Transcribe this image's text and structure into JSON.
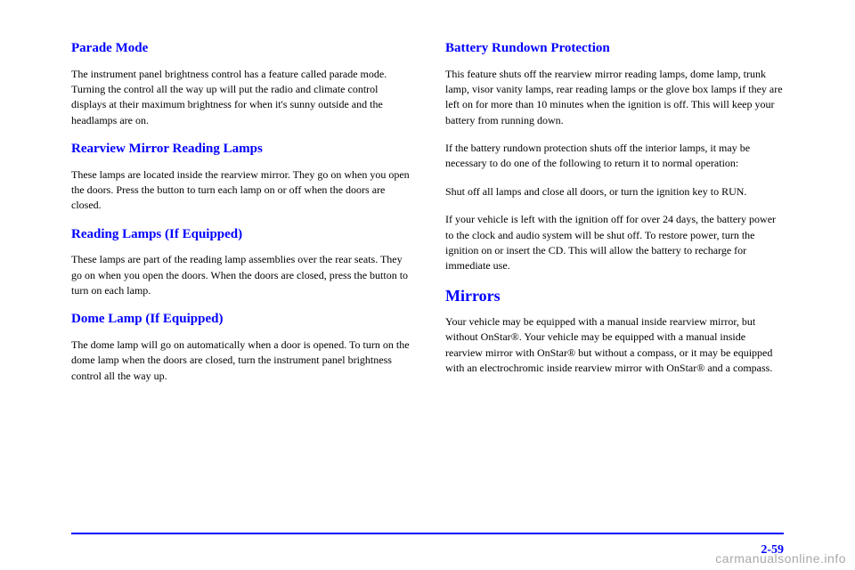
{
  "left": {
    "h1": "Parade Mode",
    "p1": "The instrument panel brightness control has a feature called parade mode. Turning the control all the way up will put the radio and climate control displays at their maximum brightness for when it's sunny outside and the headlamps are on.",
    "h2": "Rearview Mirror Reading Lamps",
    "p2": "These lamps are located inside the rearview mirror. They go on when you open the doors. Press the button to turn each lamp on or off when the doors are closed.",
    "h3": "Reading Lamps (If Equipped)",
    "p3": "These lamps are part of the reading lamp assemblies over the rear seats. They go on when you open the doors. When the doors are closed, press the button to turn on each lamp.",
    "h4": "Dome Lamp (If Equipped)",
    "p4": "The dome lamp will go on automatically when a door is opened. To turn on the dome lamp when the doors are closed, turn the instrument panel brightness control all the way up."
  },
  "right": {
    "h1": "Battery Rundown Protection",
    "p1": "This feature shuts off the rearview mirror reading lamps, dome lamp, trunk lamp, visor vanity lamps, rear reading lamps or the glove box lamps if they are left on for more than 10 minutes when the ignition is off. This will keep your battery from running down.",
    "p2": "If the battery rundown protection shuts off the interior lamps, it may be necessary to do one of the following to return it to normal operation:",
    "p3": "Shut off all lamps and close all doors, or turn the ignition key to RUN.",
    "p4": "If your vehicle is left with the ignition off for over 24 days, the battery power to the clock and audio system will be shut off. To restore power, turn the ignition on or insert the CD. This will allow the battery to recharge for immediate use.",
    "h2": "Mirrors",
    "p5": "Your vehicle may be equipped with a manual inside rearview mirror, but without OnStar®. Your vehicle may be equipped with a manual inside rearview mirror with OnStar® but without a compass, or it may be equipped with an electrochromic inside rearview mirror with OnStar® and a compass."
  },
  "pagenum": "2-59",
  "watermark": "carmanualsonline.info"
}
